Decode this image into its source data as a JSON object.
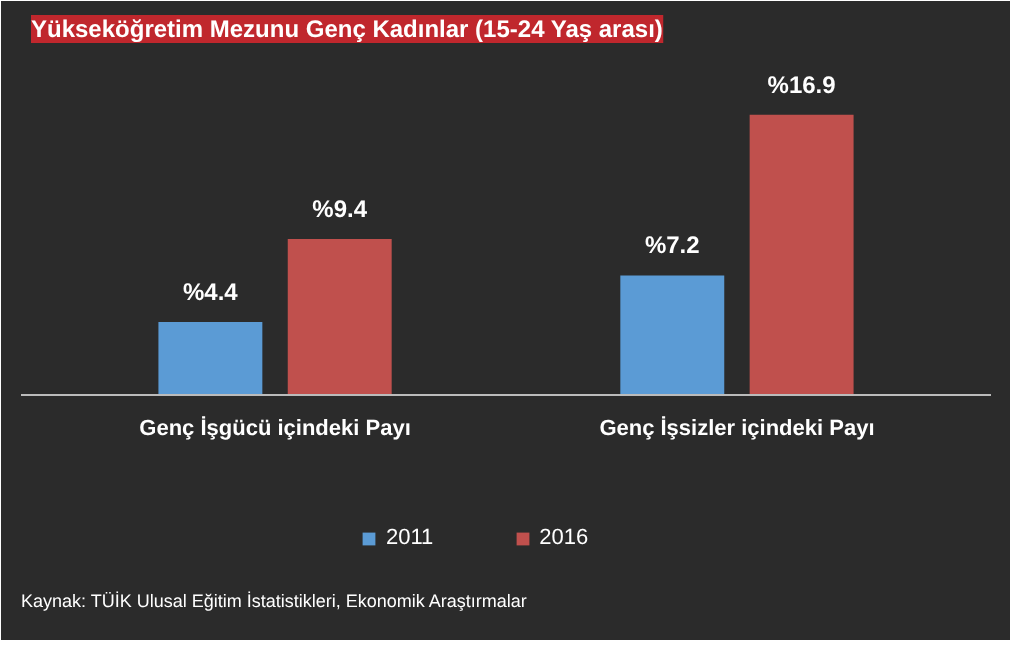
{
  "chart_data": {
    "type": "bar",
    "title": "Yükseköğretim Mezunu Genç Kadınlar (15-24 Yaş arası)",
    "categories": [
      "Genç İşgücü içindeki Payı",
      "Genç İşsizler içindeki Payı"
    ],
    "series": [
      {
        "name": "2011",
        "color": "#5b9bd5",
        "values": [
          4.4,
          7.2
        ],
        "value_labels": [
          "%4.4",
          "%7.2"
        ]
      },
      {
        "name": "2016",
        "color": "#c0504d",
        "values": [
          9.4,
          16.9
        ],
        "value_labels": [
          "%9.4",
          "%16.9"
        ]
      }
    ],
    "legend": "bottom",
    "annotations": [
      "Kaynak: TÜİK Ulusal Eğitim İstatistikleri, Ekonomik Araştırmalar"
    ]
  }
}
